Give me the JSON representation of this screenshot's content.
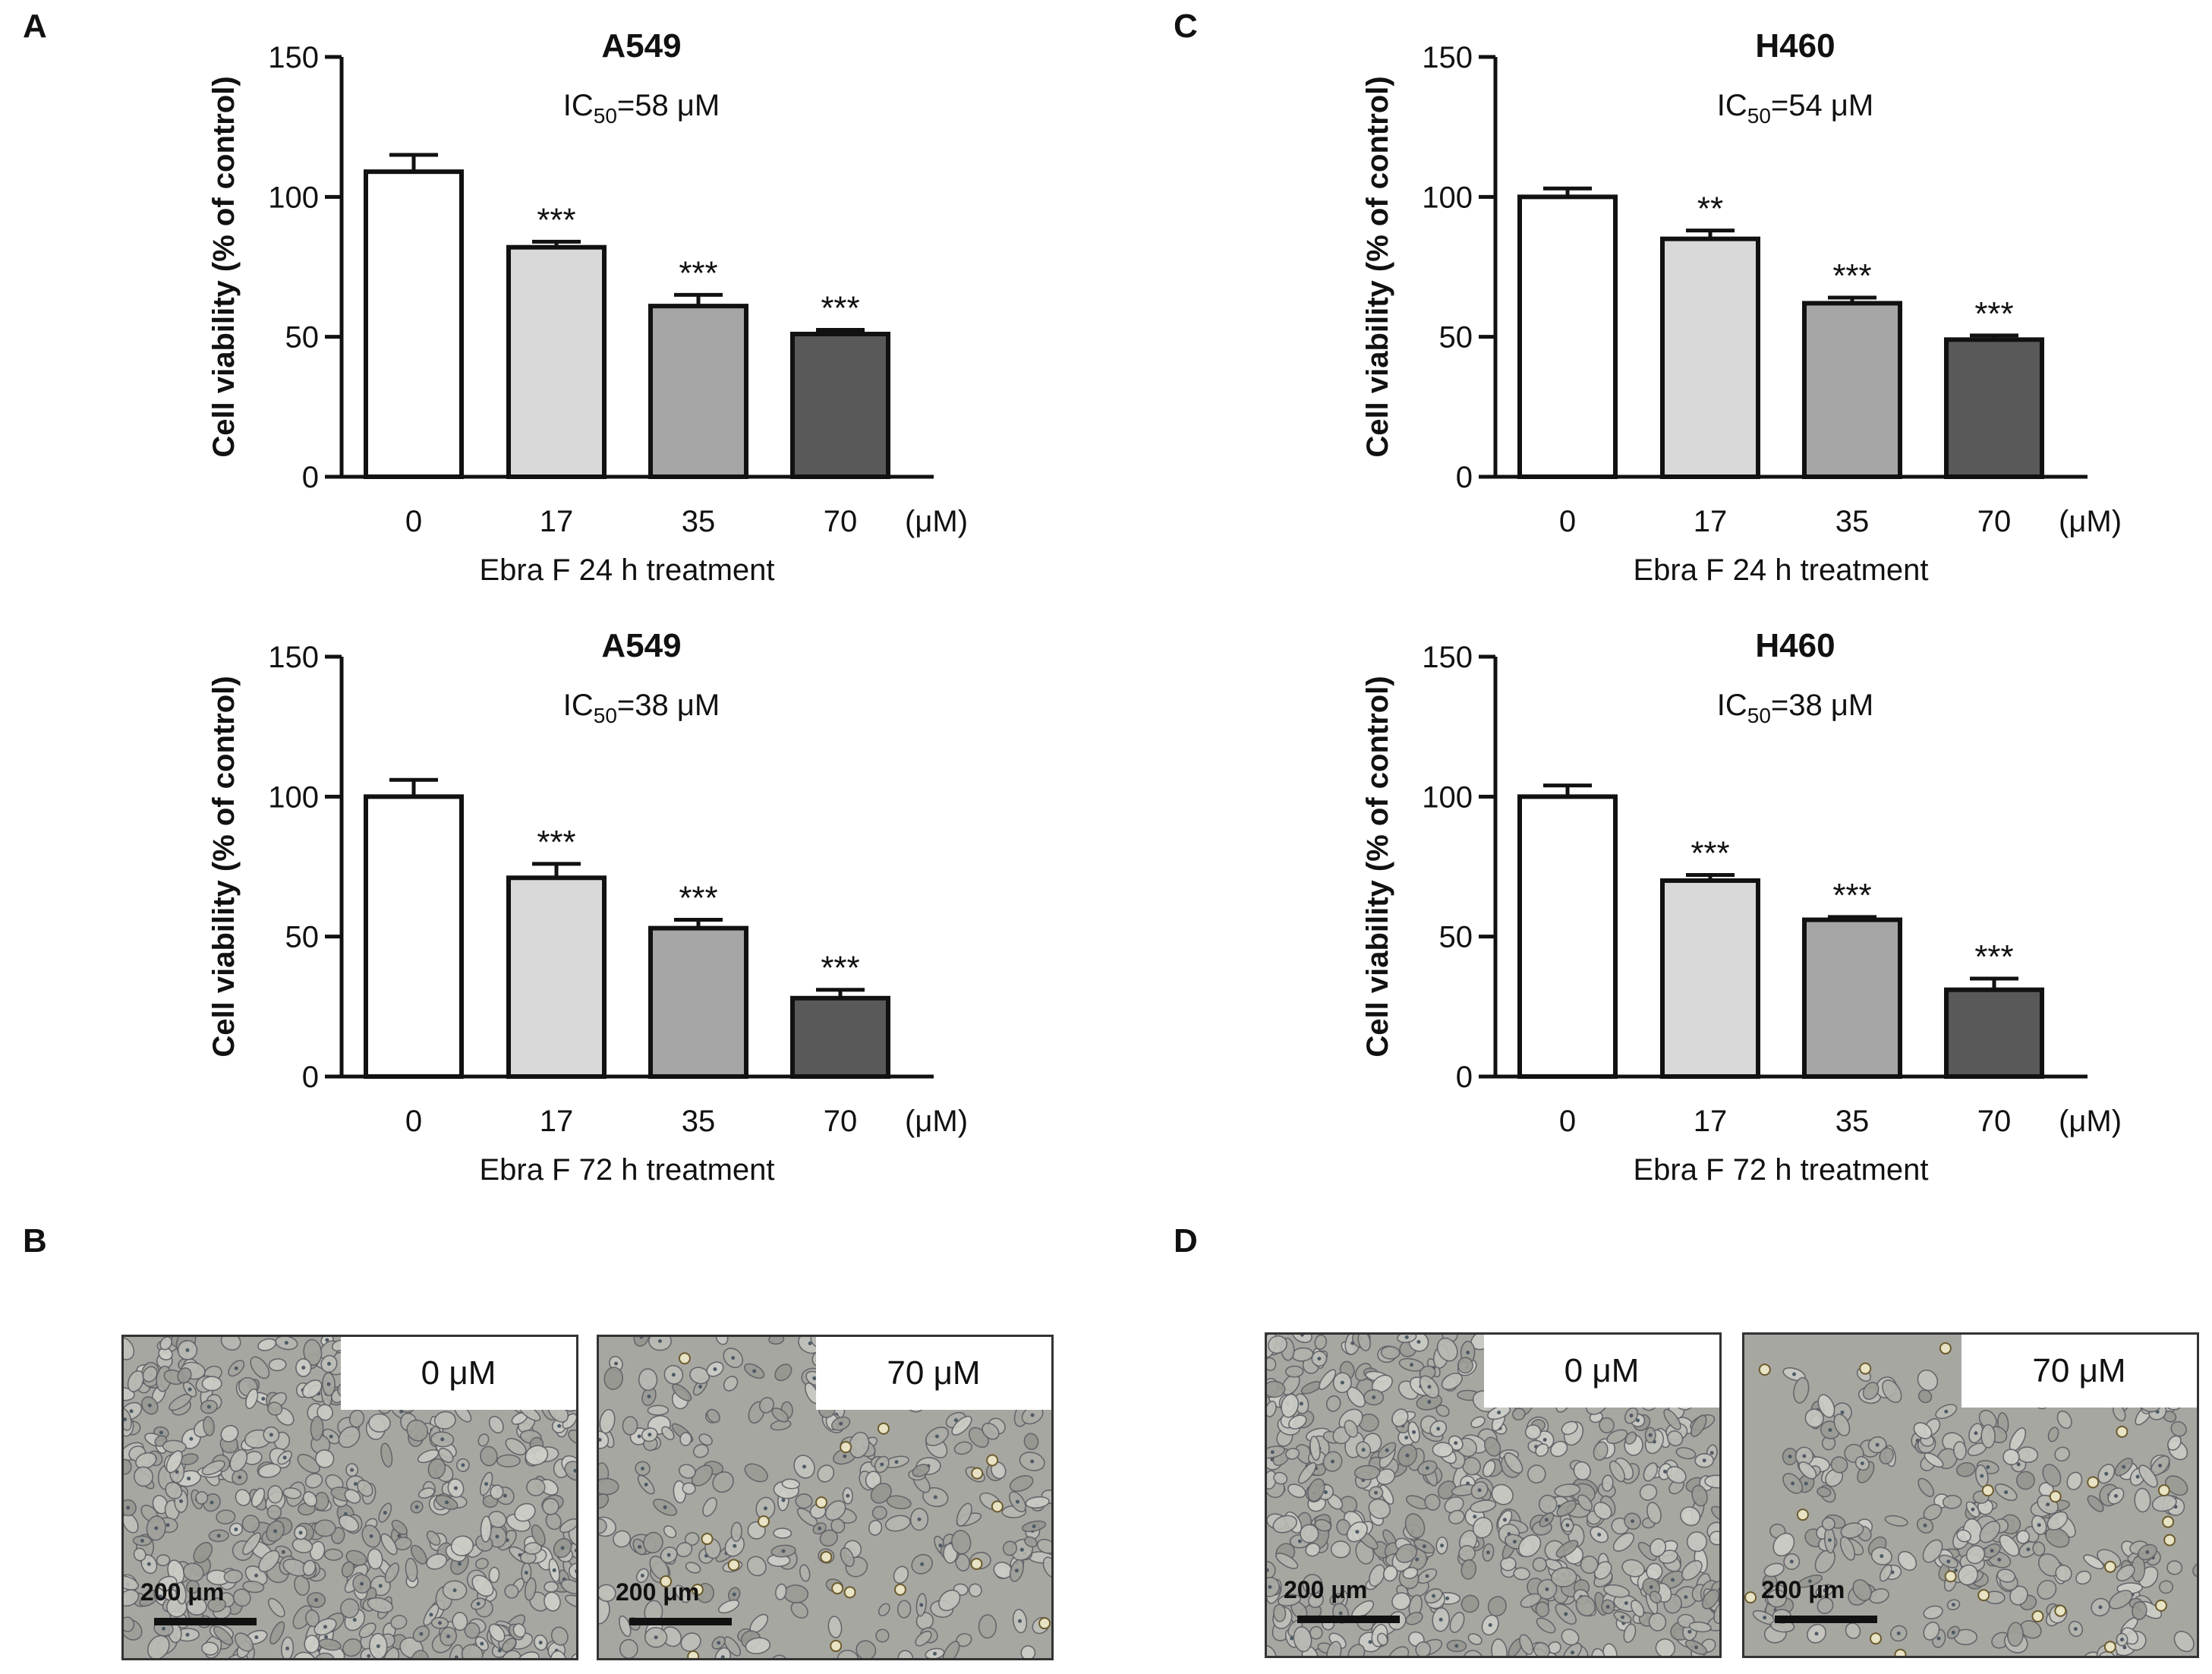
{
  "panels": {
    "A": "A",
    "B": "B",
    "C": "C",
    "D": "D"
  },
  "chart_data": [
    {
      "type": "bar",
      "id": "a24",
      "title": "A549",
      "ic50": {
        "prefix": "IC",
        "sub": "50",
        "suffix": "=58 μM"
      },
      "categories": [
        "0",
        "17",
        "35",
        "70"
      ],
      "values": [
        109,
        82,
        61,
        51
      ],
      "errors": [
        6,
        2,
        4,
        1.5
      ],
      "significance": [
        "",
        "***",
        "***",
        "***"
      ],
      "unit": "(μM)",
      "xlabel": "Ebra F 24 h treatment",
      "ylabel": "Cell viability (% of control)",
      "ylim": [
        0,
        150
      ],
      "yticks": [
        "0",
        "50",
        "100",
        "150"
      ],
      "tick_values": [
        0,
        50,
        100,
        150
      ],
      "colors": [
        "#ffffff",
        "#d9d9d9",
        "#a6a6a6",
        "#595959"
      ]
    },
    {
      "type": "bar",
      "id": "a72",
      "title": "A549",
      "ic50": {
        "prefix": "IC",
        "sub": "50",
        "suffix": "=38 μM"
      },
      "categories": [
        "0",
        "17",
        "35",
        "70"
      ],
      "values": [
        100,
        71,
        53,
        28
      ],
      "errors": [
        6,
        5,
        3,
        3
      ],
      "significance": [
        "",
        "***",
        "***",
        "***"
      ],
      "unit": "(μM)",
      "xlabel": "Ebra F 72 h treatment",
      "ylabel": "Cell viability (% of control)",
      "ylim": [
        0,
        150
      ],
      "yticks": [
        "0",
        "50",
        "100",
        "150"
      ],
      "tick_values": [
        0,
        50,
        100,
        150
      ],
      "colors": [
        "#ffffff",
        "#d9d9d9",
        "#a6a6a6",
        "#595959"
      ]
    },
    {
      "type": "bar",
      "id": "h24",
      "title": "H460",
      "ic50": {
        "prefix": "IC",
        "sub": "50",
        "suffix": "=54 μM"
      },
      "categories": [
        "0",
        "17",
        "35",
        "70"
      ],
      "values": [
        100,
        85,
        62,
        49
      ],
      "errors": [
        3,
        3,
        2,
        1.5
      ],
      "significance": [
        "",
        "**",
        "***",
        "***"
      ],
      "unit": "(μM)",
      "xlabel": "Ebra F 24 h treatment",
      "ylabel": "Cell viability (% of control)",
      "ylim": [
        0,
        150
      ],
      "yticks": [
        "0",
        "50",
        "100",
        "150"
      ],
      "tick_values": [
        0,
        50,
        100,
        150
      ],
      "colors": [
        "#ffffff",
        "#d9d9d9",
        "#a6a6a6",
        "#595959"
      ]
    },
    {
      "type": "bar",
      "id": "h72",
      "title": "H460",
      "ic50": {
        "prefix": "IC",
        "sub": "50",
        "suffix": "=38 μM"
      },
      "categories": [
        "0",
        "17",
        "35",
        "70"
      ],
      "values": [
        100,
        70,
        56,
        31
      ],
      "errors": [
        4,
        2,
        1,
        4
      ],
      "significance": [
        "",
        "***",
        "***",
        "***"
      ],
      "unit": "(μM)",
      "xlabel": "Ebra F 72 h treatment",
      "ylabel": "Cell viability (% of control)",
      "ylim": [
        0,
        150
      ],
      "yticks": [
        "0",
        "50",
        "100",
        "150"
      ],
      "tick_values": [
        0,
        50,
        100,
        150
      ],
      "colors": [
        "#ffffff",
        "#d9d9d9",
        "#a6a6a6",
        "#595959"
      ]
    }
  ],
  "micrographs": {
    "B_left": {
      "label": "0 μM",
      "scale": "200 μm"
    },
    "B_right": {
      "label": "70 μM",
      "scale": "200 μm"
    },
    "D_left": {
      "label": "0 μM",
      "scale": "200 μm"
    },
    "D_right": {
      "label": "70 μM",
      "scale": "200 μm"
    }
  }
}
